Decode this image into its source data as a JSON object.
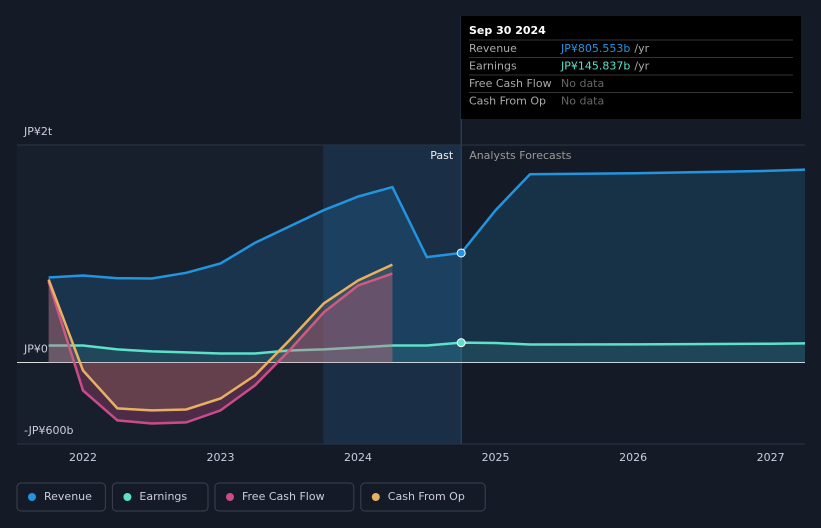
{
  "chart_data": {
    "type": "line",
    "x": [
      2021.75,
      2022.0,
      2022.25,
      2022.5,
      2022.75,
      2023.0,
      2023.25,
      2023.5,
      2023.75,
      2024.0,
      2024.25,
      2024.5,
      2024.75,
      2025.0,
      2025.25,
      2026.0,
      2027.0,
      2027.25
    ],
    "xlim": [
      2021.52,
      2027.25
    ],
    "xticks": [
      2022,
      2023,
      2024,
      2025,
      2026,
      2027
    ],
    "ylim": [
      -600,
      1600
    ],
    "yticks": [
      {
        "value": -600,
        "label": "-JP¥600b"
      },
      {
        "value": 0,
        "label": "JP¥0"
      },
      {
        "value": 1600,
        "label": "JP¥2t"
      }
    ],
    "series": [
      {
        "name": "Revenue",
        "color": "#2394df",
        "values": [
          625,
          640,
          620,
          618,
          660,
          728,
          880,
          1000,
          1120,
          1220,
          1290,
          775,
          805.553,
          1120,
          1385,
          1392,
          1410,
          1419
        ]
      },
      {
        "name": "Earnings",
        "color": "#5ee0c9",
        "values": [
          125,
          125,
          96,
          81,
          74,
          66,
          66,
          88,
          96,
          110,
          125,
          125,
          145.837,
          143,
          132,
          133,
          138,
          140
        ]
      },
      {
        "name": "Free Cash Flow",
        "color": "#c94b8a",
        "values": [
          596,
          -206,
          -426,
          -449,
          -441,
          -353,
          -169,
          88,
          368,
          566,
          654,
          null,
          null,
          null,
          null,
          null,
          null,
          null
        ]
      },
      {
        "name": "Cash From Op",
        "color": "#e8b063",
        "values": [
          610,
          -59,
          -338,
          -353,
          -346,
          -265,
          -96,
          162,
          434,
          603,
          720,
          null,
          null,
          null,
          null,
          null,
          null,
          null
        ]
      }
    ],
    "past_label": "Past",
    "forecast_label": "Analysts Forecasts",
    "tooltip": {
      "date": "Sep 30 2024",
      "rows": [
        {
          "label": "Revenue",
          "value": "JP¥805.553b",
          "unit": "/yr"
        },
        {
          "label": "Earnings",
          "value": "JP¥145.837b",
          "unit": "/yr"
        },
        {
          "label": "Free Cash Flow",
          "value": "No data"
        },
        {
          "label": "Cash From Op",
          "value": "No data"
        }
      ]
    }
  }
}
